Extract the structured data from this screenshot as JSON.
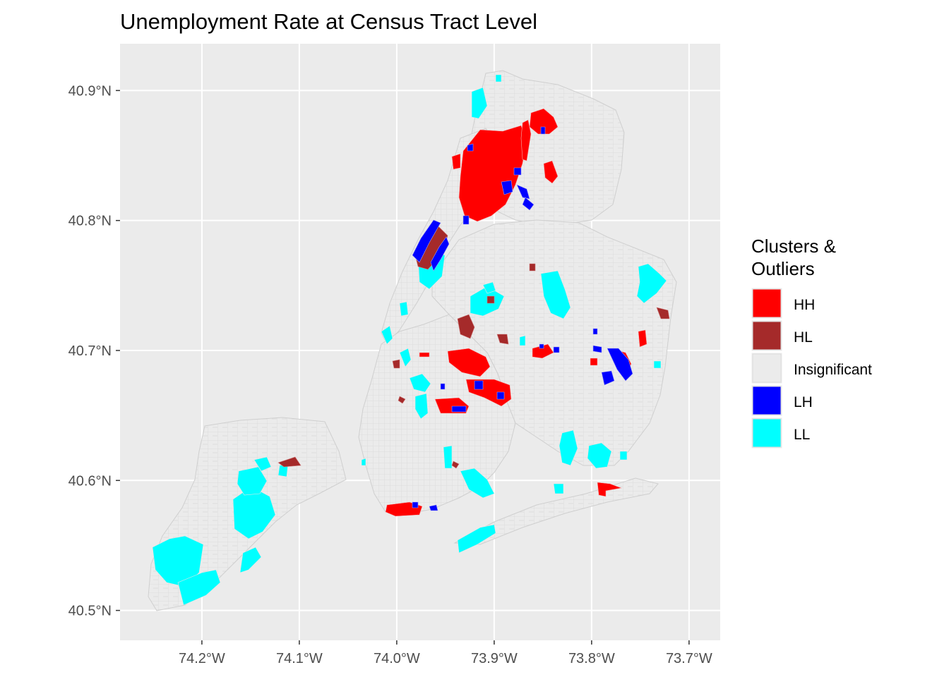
{
  "title": "Unemployment Rate at Census Tract Level",
  "axes": {
    "x_ticks": [
      "74.2°W",
      "74.1°W",
      "74.0°W",
      "73.9°W",
      "73.8°W",
      "73.7°W"
    ],
    "y_ticks": [
      "40.9°N",
      "40.8°N",
      "40.7°N",
      "40.6°N",
      "40.5°N"
    ],
    "x_values": [
      -74.2,
      -74.1,
      -74.0,
      -73.9,
      -73.8,
      -73.7
    ],
    "y_values": [
      40.9,
      40.8,
      40.7,
      40.6,
      40.5
    ],
    "xlim": [
      -74.284,
      -73.668
    ],
    "ylim": [
      40.477,
      40.936
    ]
  },
  "legend": {
    "title_line1": "Clusters &",
    "title_line2": "Outliers",
    "items": [
      {
        "label": "HH",
        "color": "#ff0000"
      },
      {
        "label": "HL",
        "color": "#a52a2a"
      },
      {
        "label": "Insignificant",
        "color": "#ebebeb"
      },
      {
        "label": "LH",
        "color": "#0000ff"
      },
      {
        "label": "LL",
        "color": "#00ffff"
      }
    ]
  },
  "colors": {
    "panel": "#ebebeb",
    "grid": "#ffffff",
    "tract_fill": "#ebebeb",
    "tract_border": "#d6d6d6"
  }
}
